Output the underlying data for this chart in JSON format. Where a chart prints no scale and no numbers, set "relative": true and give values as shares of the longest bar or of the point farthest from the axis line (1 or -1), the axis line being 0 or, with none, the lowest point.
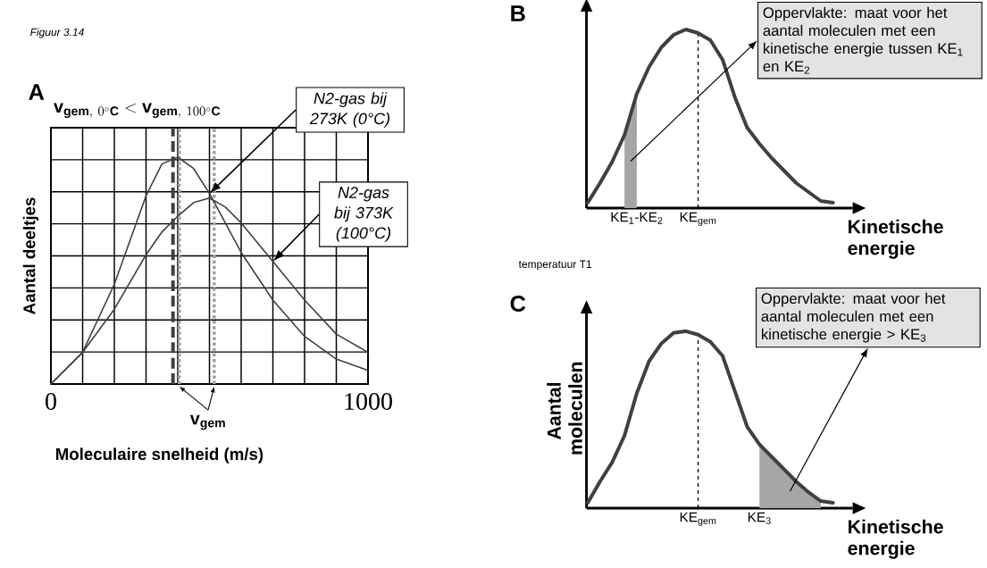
{
  "chart_data": [
    {
      "type": "line",
      "relative": true,
      "title": "\\mathbf{v}_{\\mathbf{gem},\\ 0^{\\circ}\\mathbf{C}} < \\mathbf{v}_{\\mathbf{gem},\\ 100^{\\circ}\\mathbf{C}}",
      "xlabel": "Moleculaire snelheid (m/s)",
      "ylabel": "Aantal deeltjes",
      "x": [
        0,
        100,
        200,
        300,
        350,
        400,
        450,
        500,
        550,
        600,
        700,
        800,
        900,
        1000
      ],
      "xlim": [
        0,
        1000
      ],
      "xticks": [
        0,
        {
          "value": 100,
          "label": null
        },
        {
          "value": 200,
          "label": null
        },
        {
          "value": 300,
          "label": null
        },
        {
          "value": 400,
          "label": null
        },
        {
          "value": 500,
          "label": null
        },
        {
          "value": 600,
          "label": null
        },
        {
          "value": 700,
          "label": null
        },
        {
          "value": 800,
          "label": null
        },
        {
          "value": 900,
          "label": null
        },
        1000
      ],
      "grid": true,
      "series": [
        {
          "color": "#404040",
          "values": [
            0,
            0.14,
            0.44,
            0.83,
            0.97,
            1,
            0.95,
            0.84,
            0.71,
            0.58,
            0.37,
            0.21,
            0.11,
            0.06
          ]
        },
        {
          "color": "#404040",
          "values": [
            0,
            0.14,
            0.33,
            0.57,
            0.67,
            0.74,
            0.8,
            0.82,
            0.78,
            0.71,
            0.54,
            0.37,
            0.22,
            0.14
          ]
        }
      ],
      "ref_lines": [
        {
          "axis": "x",
          "value": 385,
          "line_style": "dashed",
          "color": "#404040"
        },
        {
          "axis": "x",
          "value": 405,
          "line_style": "dotted",
          "color": "#a0a0a0"
        },
        {
          "axis": "x",
          "value": 515,
          "line_style": "dotted",
          "color": "#a0a0a0"
        }
      ],
      "annotations": [
        "Figuur 3.14",
        "A",
        "N2-gas bij 273K (0°C)",
        "N2-gas bij 373K (100°C)",
        "v$_{gem}$"
      ]
    },
    {
      "type": "line",
      "relative": true,
      "xlabel": "Kinetische energie",
      "categories": [
        null,
        null,
        null,
        null,
        "KE$_{1}$-KE$_{2}$",
        null,
        null,
        null,
        null,
        "KE$_{gem}$",
        null,
        null,
        null,
        null,
        null,
        null,
        null,
        null,
        null,
        null,
        null
      ],
      "series": [
        {
          "type": "area",
          "color": "#a6a6a6",
          "values": [
            null,
            null,
            null,
            0.41,
            0.64,
            null,
            null,
            null,
            null,
            null,
            null,
            null,
            null,
            null,
            null,
            null,
            null,
            null,
            null,
            null,
            null
          ]
        },
        {
          "color": "#404040",
          "values": [
            0.03,
            0.14,
            0.26,
            0.41,
            0.64,
            0.79,
            0.9,
            0.97,
            1,
            0.98,
            0.94,
            0.83,
            0.62,
            0.45,
            0.36,
            0.28,
            0.21,
            0.14,
            0.09,
            0.04,
            0.03
          ]
        }
      ],
      "ref_lines": [
        {
          "axis": "x",
          "value": "KE$_{gem}$",
          "line_style": "dashed",
          "color": "#000000"
        }
      ],
      "annotations": [
        "B",
        "Oppervlakte: maat voor het aantal moleculen met een kinetische energie tussen KE$_{1}$ en KE$_{2}$",
        "temperatuur T1"
      ]
    },
    {
      "type": "line",
      "relative": true,
      "xlabel": "Kinetische energie",
      "ylabel": "Aantal moleculen",
      "categories": [
        null,
        null,
        null,
        null,
        null,
        null,
        null,
        null,
        null,
        "KE$_{gem}$",
        null,
        null,
        null,
        null,
        "KE$_{3}$",
        null,
        null,
        null,
        null,
        null,
        null
      ],
      "series": [
        {
          "type": "area",
          "color": "#a6a6a6",
          "values": [
            null,
            null,
            null,
            null,
            null,
            null,
            null,
            null,
            null,
            null,
            null,
            null,
            null,
            null,
            0.36,
            0.29,
            0.22,
            0.15,
            0.09,
            0.04,
            null
          ]
        },
        {
          "color": "#404040",
          "values": [
            0.03,
            0.15,
            0.26,
            0.41,
            0.65,
            0.83,
            0.93,
            0.99,
            1,
            0.98,
            0.94,
            0.86,
            0.66,
            0.46,
            0.36,
            0.29,
            0.22,
            0.15,
            0.09,
            0.04,
            0.03
          ]
        }
      ],
      "ref_lines": [
        {
          "axis": "x",
          "value": "KE$_{gem}$",
          "line_style": "dashed",
          "color": "#000000"
        }
      ],
      "annotations": [
        "C",
        "Oppervlakte: maat voor het aantal moleculen met een kinetische energie > KE$_{3}$"
      ]
    }
  ]
}
